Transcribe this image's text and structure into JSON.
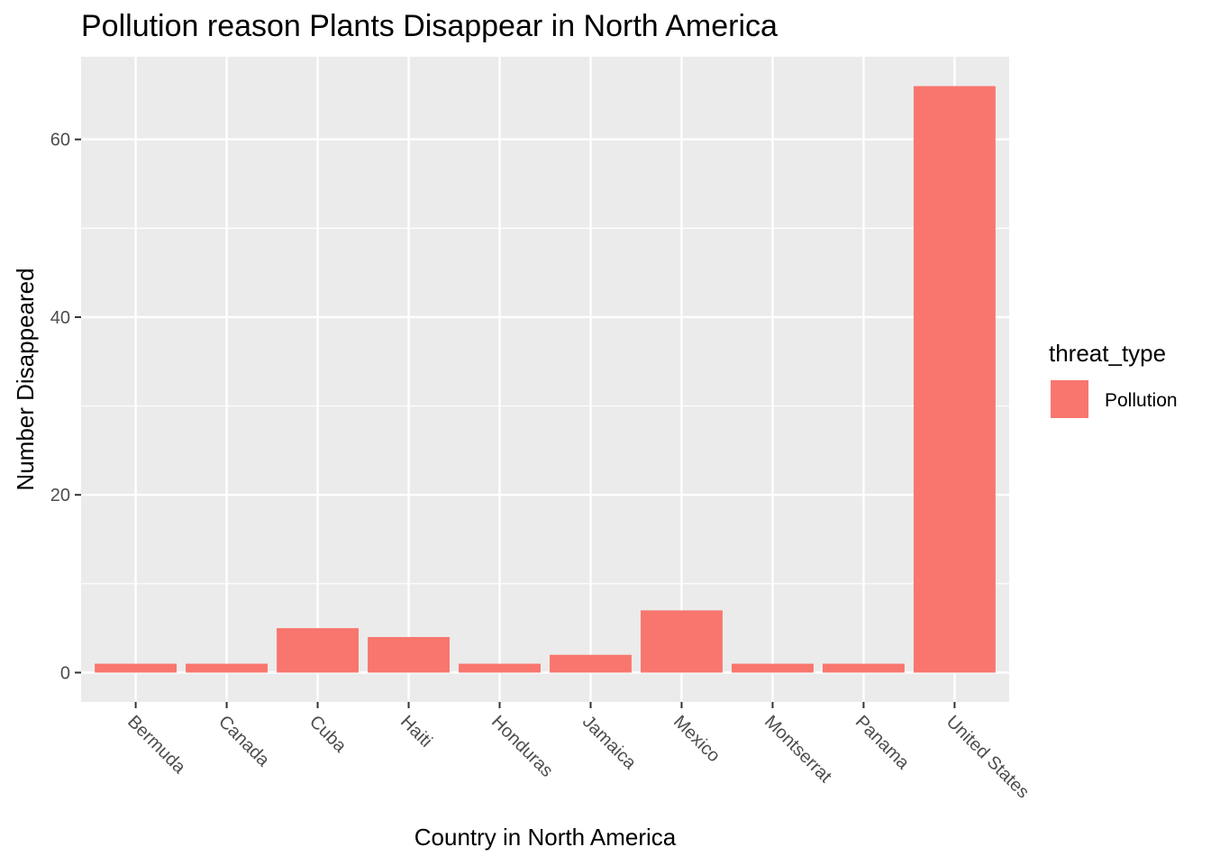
{
  "chart_data": {
    "type": "bar",
    "title": "Pollution reason Plants Disappear in North America",
    "xlabel": "Country in North America",
    "ylabel": "Number Disappeared",
    "categories": [
      "Bermuda",
      "Canada",
      "Cuba",
      "Haiti",
      "Honduras",
      "Jamaica",
      "Mexico",
      "Montserrat",
      "Panama",
      "United States"
    ],
    "series": [
      {
        "name": "Pollution",
        "values": [
          1,
          1,
          5,
          4,
          1,
          2,
          7,
          1,
          1,
          66
        ],
        "color": "#F8766D"
      }
    ],
    "ylim": [
      -3.3,
      69.3
    ],
    "yticks": [
      0,
      20,
      40,
      60
    ],
    "ytick_labels": [
      "0",
      "20",
      "40",
      "60"
    ],
    "grid": true,
    "panel_background": "#EBEBEB",
    "legend": {
      "title": "threat_type",
      "position": "right"
    }
  }
}
